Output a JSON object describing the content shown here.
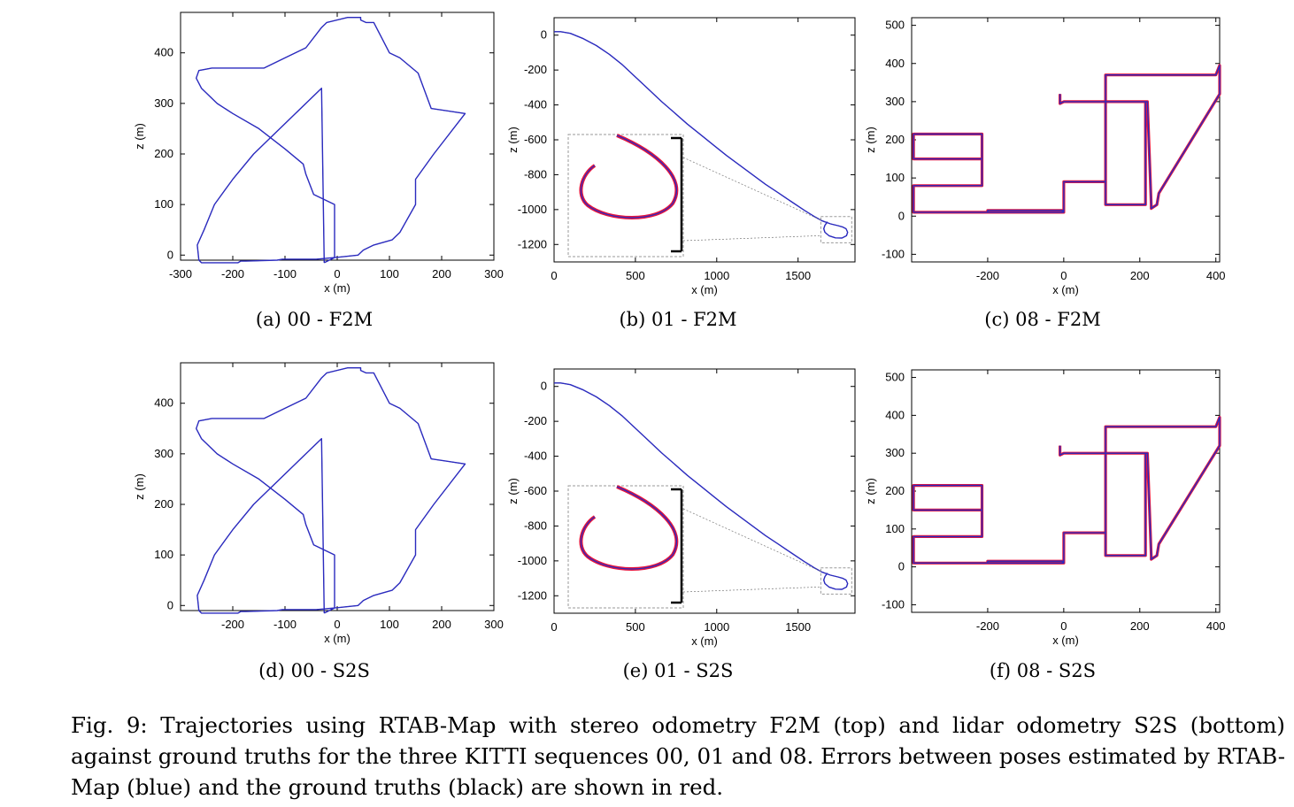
{
  "caption": "Fig.   9: Trajectories using RTAB-Map with stereo odometry F2M (top) and lidar odometry S2S (bottom) against ground truths for the three KITTI sequences 00, 01 and 08.  Errors between poses estimated by RTAB-Map (blue) and the ground truths (black) are shown in red.",
  "colors": {
    "estimate": "#2b2bbf",
    "ground_truth": "#000000",
    "error": "#e8143c",
    "zoom_box": "#9a9a9a"
  },
  "chart_data": [
    {
      "type": "line",
      "caption": "(a) 00 - F2M",
      "xlabel": "x (m)",
      "ylabel": "z (m)",
      "xlim": [
        -300,
        300
      ],
      "ylim": [
        -10,
        480
      ],
      "xticks": [
        -300,
        -200,
        -100,
        0,
        100,
        200,
        300
      ],
      "yticks": [
        0,
        100,
        200,
        300,
        400
      ],
      "grid": false,
      "error_level": 0,
      "series": [
        {
          "x": [
            -25,
            -5,
            40,
            50,
            70,
            105,
            120,
            150,
            150,
            185,
            245,
            180,
            155,
            120,
            100,
            70,
            55,
            45,
            45,
            20,
            -20,
            -30,
            -60,
            -100,
            -140,
            -180,
            -220,
            -240,
            -265,
            -270,
            -260,
            -230,
            -200,
            -150,
            -100,
            -65,
            -60,
            -45,
            -5,
            -5,
            -5,
            -5,
            -40,
            -100,
            -100,
            -105,
            -115,
            -175,
            -180,
            -185,
            -185,
            -190,
            -200,
            -250,
            -260,
            -265,
            -268,
            -255,
            -235,
            -200,
            -160,
            -120,
            -80,
            -50,
            -30,
            -25
          ],
          "y": [
            -15,
            -5,
            0,
            10,
            20,
            30,
            45,
            100,
            150,
            200,
            280,
            290,
            360,
            390,
            400,
            460,
            460,
            465,
            470,
            470,
            460,
            450,
            410,
            390,
            370,
            370,
            370,
            370,
            365,
            350,
            330,
            300,
            280,
            250,
            210,
            180,
            160,
            120,
            100,
            50,
            20,
            -5,
            -8,
            -8,
            -8,
            -8,
            -10,
            -12,
            -12,
            -12,
            -12,
            -15,
            -15,
            -15,
            -15,
            -10,
            20,
            50,
            100,
            150,
            200,
            240,
            280,
            310,
            330,
            -15
          ]
        }
      ]
    },
    {
      "type": "line",
      "caption": "(b) 01 - F2M",
      "xlabel": "x (m)",
      "ylabel": "z (m)",
      "xlim": [
        0,
        1850
      ],
      "ylim": [
        -1300,
        100
      ],
      "xticks": [
        0,
        500,
        1000,
        1500
      ],
      "yticks": [
        0,
        -200,
        -400,
        -600,
        -800,
        -1000,
        -1200
      ],
      "grid": false,
      "error_level": 0,
      "series": [
        {
          "x": [
            0,
            40,
            100,
            180,
            260,
            340,
            420,
            500,
            580,
            660,
            740,
            820,
            900,
            980,
            1060,
            1140,
            1220,
            1300,
            1380,
            1460,
            1540,
            1600,
            1650,
            1700,
            1745,
            1775,
            1795,
            1805,
            1798,
            1770,
            1730,
            1690,
            1665,
            1658,
            1665,
            1680
          ],
          "y": [
            20,
            20,
            10,
            -20,
            -60,
            -110,
            -170,
            -240,
            -310,
            -380,
            -445,
            -510,
            -570,
            -630,
            -690,
            -745,
            -800,
            -855,
            -905,
            -955,
            -1005,
            -1040,
            -1065,
            -1082,
            -1092,
            -1100,
            -1110,
            -1130,
            -1150,
            -1163,
            -1162,
            -1150,
            -1130,
            -1110,
            -1090,
            -1070
          ]
        }
      ]
    },
    {
      "type": "line",
      "caption": "(c) 08 - F2M",
      "xlabel": "x (m)",
      "ylabel": "z (m)",
      "xlim": [
        -400,
        410
      ],
      "ylim": [
        -120,
        520
      ],
      "xticks": [
        -200,
        0,
        200,
        400
      ],
      "yticks": [
        -100,
        0,
        100,
        200,
        300,
        400,
        500
      ],
      "grid": false,
      "error_level": 1,
      "series": [
        {
          "x": [
            -5,
            0,
            0,
            -395,
            -395,
            -215,
            -215,
            -395,
            -395,
            -215,
            -215,
            -395,
            -395,
            -200,
            -200,
            0,
            0,
            110,
            110,
            215,
            215,
            110,
            110,
            400,
            410,
            410,
            250,
            245,
            230,
            230,
            220,
            100,
            0,
            -10,
            -10
          ],
          "y": [
            10,
            15,
            10,
            10,
            80,
            80,
            150,
            150,
            215,
            215,
            80,
            80,
            10,
            10,
            15,
            15,
            90,
            90,
            300,
            300,
            30,
            30,
            370,
            370,
            395,
            320,
            60,
            30,
            20,
            30,
            300,
            300,
            300,
            295,
            320
          ]
        }
      ]
    },
    {
      "type": "line",
      "caption": "(d) 00 - S2S",
      "xlabel": "x (m)",
      "ylabel": "z (m)",
      "xlim": [
        -300,
        300
      ],
      "ylim": [
        -10,
        480
      ],
      "xticks": [
        -200,
        -100,
        0,
        100,
        200,
        300
      ],
      "yticks": [
        0,
        100,
        200,
        300,
        400
      ],
      "grid": false,
      "error_level": 0,
      "series": [
        {
          "x": [
            -25,
            -5,
            40,
            50,
            70,
            105,
            120,
            150,
            150,
            185,
            245,
            180,
            155,
            120,
            100,
            70,
            55,
            45,
            45,
            20,
            -20,
            -30,
            -60,
            -100,
            -140,
            -180,
            -220,
            -240,
            -265,
            -270,
            -260,
            -230,
            -200,
            -150,
            -100,
            -65,
            -60,
            -45,
            -5,
            -5,
            -5,
            -5,
            -40,
            -100,
            -100,
            -105,
            -115,
            -175,
            -180,
            -185,
            -185,
            -190,
            -200,
            -250,
            -260,
            -265,
            -268,
            -255,
            -235,
            -200,
            -160,
            -120,
            -80,
            -50,
            -30,
            -25
          ],
          "y": [
            -15,
            -5,
            0,
            10,
            20,
            30,
            45,
            100,
            150,
            200,
            280,
            290,
            360,
            390,
            400,
            460,
            460,
            465,
            470,
            470,
            460,
            450,
            410,
            390,
            370,
            370,
            370,
            370,
            365,
            350,
            330,
            300,
            280,
            250,
            210,
            180,
            160,
            120,
            100,
            50,
            20,
            -5,
            -8,
            -8,
            -8,
            -8,
            -10,
            -12,
            -12,
            -12,
            -12,
            -15,
            -15,
            -15,
            -15,
            -10,
            20,
            50,
            100,
            150,
            200,
            240,
            280,
            310,
            330,
            -15
          ]
        }
      ]
    },
    {
      "type": "line",
      "caption": "(e) 01 - S2S",
      "xlabel": "x (m)",
      "ylabel": "z (m)",
      "xlim": [
        0,
        1850
      ],
      "ylim": [
        -1300,
        100
      ],
      "xticks": [
        0,
        500,
        1000,
        1500
      ],
      "yticks": [
        0,
        -200,
        -400,
        -600,
        -800,
        -1000,
        -1200
      ],
      "grid": false,
      "error_level": 0,
      "series": [
        {
          "x": [
            0,
            40,
            100,
            180,
            260,
            340,
            420,
            500,
            580,
            660,
            740,
            820,
            900,
            980,
            1060,
            1140,
            1220,
            1300,
            1380,
            1460,
            1540,
            1600,
            1650,
            1700,
            1745,
            1775,
            1795,
            1805,
            1798,
            1770,
            1730,
            1690,
            1665,
            1658,
            1665,
            1680
          ],
          "y": [
            20,
            20,
            10,
            -20,
            -60,
            -110,
            -170,
            -240,
            -310,
            -380,
            -445,
            -510,
            -570,
            -630,
            -690,
            -745,
            -800,
            -855,
            -905,
            -955,
            -1005,
            -1040,
            -1065,
            -1082,
            -1092,
            -1100,
            -1110,
            -1130,
            -1150,
            -1163,
            -1162,
            -1150,
            -1130,
            -1110,
            -1090,
            -1070
          ]
        }
      ]
    },
    {
      "type": "line",
      "caption": "(f) 08 - S2S",
      "xlabel": "x (m)",
      "ylabel": "z (m)",
      "xlim": [
        -400,
        410
      ],
      "ylim": [
        -120,
        520
      ],
      "xticks": [
        -200,
        0,
        200,
        400
      ],
      "yticks": [
        -100,
        0,
        100,
        200,
        300,
        400,
        500
      ],
      "grid": false,
      "error_level": 1,
      "series": [
        {
          "x": [
            -5,
            0,
            0,
            -395,
            -395,
            -215,
            -215,
            -395,
            -395,
            -215,
            -215,
            -395,
            -395,
            -200,
            -200,
            0,
            0,
            110,
            110,
            215,
            215,
            110,
            110,
            400,
            410,
            410,
            250,
            245,
            230,
            230,
            220,
            100,
            0,
            -10,
            -10
          ],
          "y": [
            10,
            15,
            10,
            10,
            80,
            80,
            150,
            150,
            215,
            215,
            80,
            80,
            10,
            10,
            15,
            15,
            90,
            90,
            300,
            300,
            30,
            30,
            370,
            370,
            395,
            320,
            60,
            30,
            20,
            30,
            300,
            300,
            300,
            295,
            320
          ]
        }
      ]
    }
  ]
}
